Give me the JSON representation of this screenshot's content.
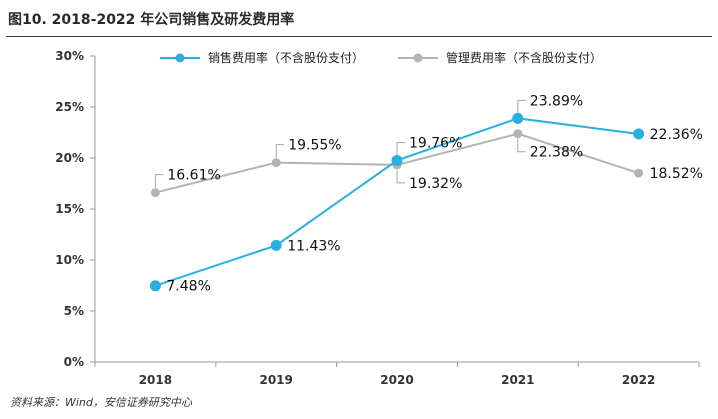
{
  "header": {
    "title": "图10. 2018-2022 年公司销售及研发费用率"
  },
  "footer": {
    "source": "资料来源：Wind，安信证券研究中心"
  },
  "chart_data": {
    "type": "line",
    "title": "图10. 2018-2022 年公司销售及研发费用率",
    "x": [
      "2018",
      "2019",
      "2020",
      "2021",
      "2022"
    ],
    "ylim": [
      0,
      30
    ],
    "yticks": [
      0,
      5,
      10,
      15,
      20,
      25,
      30
    ],
    "ytick_labels": [
      "0%",
      "5%",
      "10%",
      "15%",
      "20%",
      "25%",
      "30%"
    ],
    "grid": false,
    "legend_position": "top",
    "series": [
      {
        "name": "销售费用率（不含股份支付）",
        "values": [
          7.48,
          11.43,
          19.76,
          23.89,
          22.36
        ],
        "labels": [
          "7.48%",
          "11.43%",
          "19.76%",
          "23.89%",
          "22.36%"
        ],
        "color": "#2ab0e0"
      },
      {
        "name": "管理费用率（不含股份支付）",
        "values": [
          16.61,
          19.55,
          19.32,
          22.38,
          18.52
        ],
        "labels": [
          "16.61%",
          "19.55%",
          "19.32%",
          "22.38%",
          "18.52%"
        ],
        "color": "#b3b3b3"
      }
    ]
  }
}
